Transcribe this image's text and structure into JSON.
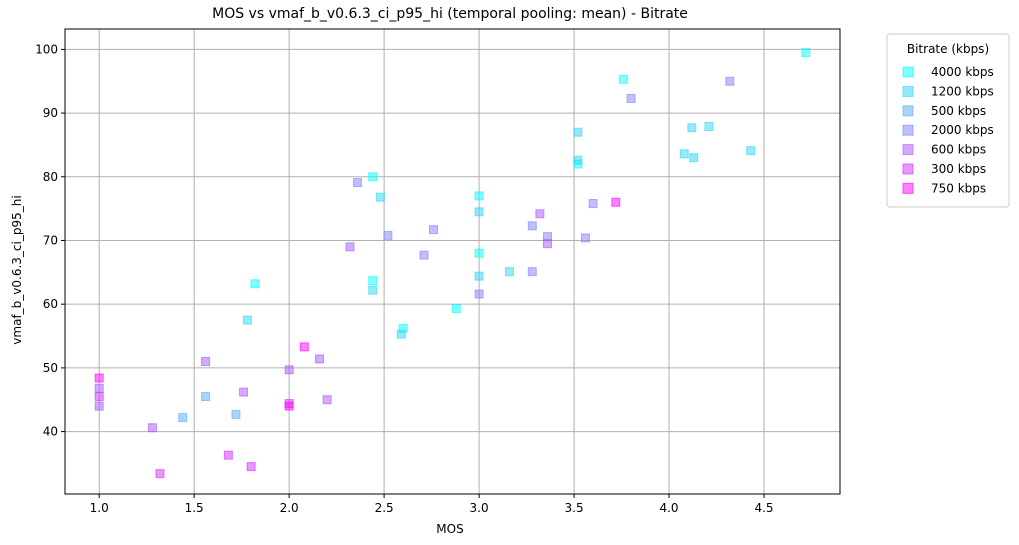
{
  "chart_data": {
    "type": "scatter",
    "title": "MOS vs vmaf_b_v0.6.3_ci_p95_hi (temporal pooling: mean) - Bitrate",
    "xlabel": "MOS",
    "ylabel": "vmaf_b_v0.6.3_ci_p95_hi",
    "xlim": [
      0.82,
      4.9
    ],
    "ylim": [
      30.2,
      103.2
    ],
    "xticks": [
      1.0,
      1.5,
      2.0,
      2.5,
      3.0,
      3.5,
      4.0,
      4.5
    ],
    "xtick_labels": [
      "1.0",
      "1.5",
      "2.0",
      "2.5",
      "3.0",
      "3.5",
      "4.0",
      "4.5"
    ],
    "yticks": [
      40,
      50,
      60,
      70,
      80,
      90,
      100
    ],
    "ytick_labels": [
      "40",
      "50",
      "60",
      "70",
      "80",
      "90",
      "100"
    ],
    "grid": true,
    "marker": "square",
    "legend": {
      "title": "Bitrate (kbps)",
      "position": "outside-top-right"
    },
    "series": [
      {
        "name": "4000 kbps",
        "color": "#00ffff",
        "points": [
          [
            4.72,
            99.5
          ],
          [
            3.76,
            95.3
          ],
          [
            3.52,
            82.0
          ],
          [
            3.0,
            77.0
          ],
          [
            2.44,
            80.0
          ],
          [
            2.44,
            63.7
          ],
          [
            2.6,
            56.2
          ],
          [
            2.88,
            59.3
          ],
          [
            1.82,
            63.2
          ],
          [
            3.0,
            68.0
          ]
        ]
      },
      {
        "name": "1200 kbps",
        "color": "#2ad5f5",
        "points": [
          [
            4.12,
            87.7
          ],
          [
            4.21,
            87.9
          ],
          [
            4.43,
            84.1
          ],
          [
            4.08,
            83.6
          ],
          [
            4.13,
            83.0
          ],
          [
            3.52,
            87.0
          ],
          [
            3.52,
            82.6
          ],
          [
            2.48,
            76.8
          ],
          [
            3.0,
            74.5
          ],
          [
            3.0,
            64.4
          ],
          [
            3.16,
            65.1
          ],
          [
            2.44,
            62.2
          ],
          [
            2.59,
            55.3
          ],
          [
            1.78,
            57.5
          ]
        ]
      },
      {
        "name": "500 kbps",
        "color": "#55aaff",
        "points": [
          [
            1.56,
            45.5
          ],
          [
            1.44,
            42.2
          ],
          [
            1.72,
            42.7
          ]
        ]
      },
      {
        "name": "2000 kbps",
        "color": "#8080ff",
        "points": [
          [
            4.32,
            95.0
          ],
          [
            3.8,
            92.3
          ],
          [
            2.36,
            79.1
          ],
          [
            3.6,
            75.8
          ],
          [
            2.76,
            71.7
          ],
          [
            2.52,
            70.8
          ],
          [
            2.71,
            67.7
          ],
          [
            3.28,
            72.3
          ],
          [
            3.56,
            70.4
          ],
          [
            3.28,
            65.1
          ],
          [
            3.0,
            61.6
          ],
          [
            3.36,
            70.6
          ]
        ]
      },
      {
        "name": "600 kbps",
        "color": "#aa55ff",
        "points": [
          [
            3.32,
            74.2
          ],
          [
            3.36,
            69.5
          ],
          [
            2.32,
            69.0
          ],
          [
            1.56,
            51.0
          ],
          [
            2.16,
            51.4
          ],
          [
            2.0,
            49.7
          ],
          [
            1.76,
            46.2
          ],
          [
            2.2,
            45.0
          ],
          [
            1.28,
            40.6
          ],
          [
            1.0,
            46.8
          ],
          [
            1.0,
            44.0
          ]
        ]
      },
      {
        "name": "300 kbps",
        "color": "#d42bff",
        "points": [
          [
            1.68,
            36.3
          ],
          [
            1.8,
            34.5
          ],
          [
            1.32,
            33.4
          ],
          [
            2.0,
            44.4
          ],
          [
            1.0,
            45.5
          ]
        ]
      },
      {
        "name": "750 kbps",
        "color": "#ff00ff",
        "points": [
          [
            3.72,
            76.0
          ],
          [
            2.08,
            53.3
          ],
          [
            1.0,
            48.4
          ],
          [
            2.0,
            44.0
          ]
        ]
      }
    ]
  }
}
